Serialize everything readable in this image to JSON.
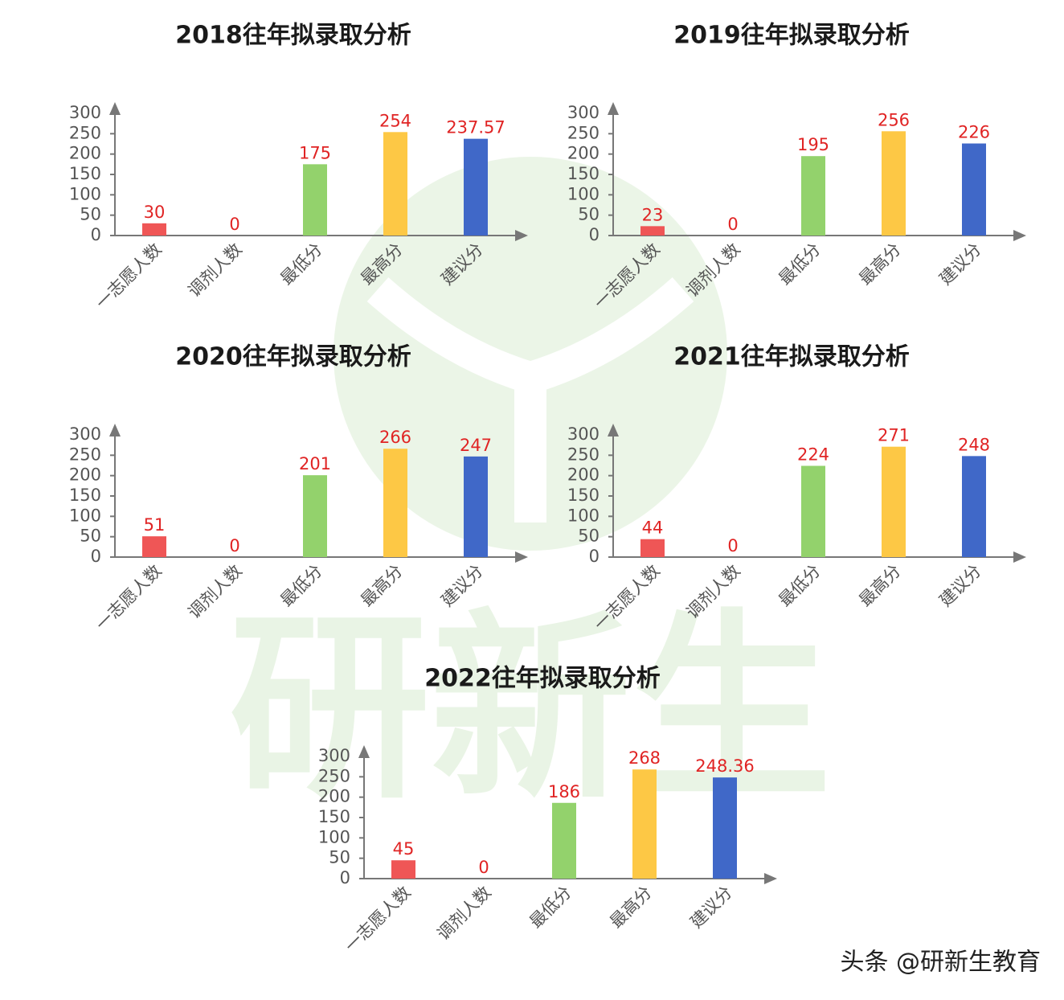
{
  "watermark": "研新生",
  "footer": "头条 @研新生教育",
  "chart_data": [
    {
      "type": "bar",
      "title": "2018往年拟录取分析",
      "categories": [
        "一志愿人数",
        "调剂人数",
        "最低分",
        "最高分",
        "建议分"
      ],
      "values": [
        30,
        0,
        175,
        254,
        237.57
      ],
      "colors": [
        "#ef5656",
        "#ef5656",
        "#93d26c",
        "#fdc845",
        "#4068c8"
      ],
      "ylim": [
        0,
        300
      ],
      "yticks": [
        0,
        50,
        100,
        150,
        200,
        250,
        300
      ]
    },
    {
      "type": "bar",
      "title": "2019往年拟录取分析",
      "categories": [
        "一志愿人数",
        "调剂人数",
        "最低分",
        "最高分",
        "建议分"
      ],
      "values": [
        23,
        0,
        195,
        256,
        226
      ],
      "colors": [
        "#ef5656",
        "#ef5656",
        "#93d26c",
        "#fdc845",
        "#4068c8"
      ],
      "ylim": [
        0,
        300
      ],
      "yticks": [
        0,
        50,
        100,
        150,
        200,
        250,
        300
      ]
    },
    {
      "type": "bar",
      "title": "2020往年拟录取分析",
      "categories": [
        "一志愿人数",
        "调剂人数",
        "最低分",
        "最高分",
        "建议分"
      ],
      "values": [
        51,
        0,
        201,
        266,
        247
      ],
      "colors": [
        "#ef5656",
        "#ef5656",
        "#93d26c",
        "#fdc845",
        "#4068c8"
      ],
      "ylim": [
        0,
        300
      ],
      "yticks": [
        0,
        50,
        100,
        150,
        200,
        250,
        300
      ]
    },
    {
      "type": "bar",
      "title": "2021往年拟录取分析",
      "categories": [
        "一志愿人数",
        "调剂人数",
        "最低分",
        "最高分",
        "建议分"
      ],
      "values": [
        44,
        0,
        224,
        271,
        248
      ],
      "colors": [
        "#ef5656",
        "#ef5656",
        "#93d26c",
        "#fdc845",
        "#4068c8"
      ],
      "ylim": [
        0,
        300
      ],
      "yticks": [
        0,
        50,
        100,
        150,
        200,
        250,
        300
      ]
    },
    {
      "type": "bar",
      "title": "2022往年拟录取分析",
      "categories": [
        "一志愿人数",
        "调剂人数",
        "最低分",
        "最高分",
        "建议分"
      ],
      "values": [
        45,
        0,
        186,
        268,
        248.36
      ],
      "colors": [
        "#ef5656",
        "#ef5656",
        "#93d26c",
        "#fdc845",
        "#4068c8"
      ],
      "ylim": [
        0,
        300
      ],
      "yticks": [
        0,
        50,
        100,
        150,
        200,
        250,
        300
      ]
    }
  ]
}
